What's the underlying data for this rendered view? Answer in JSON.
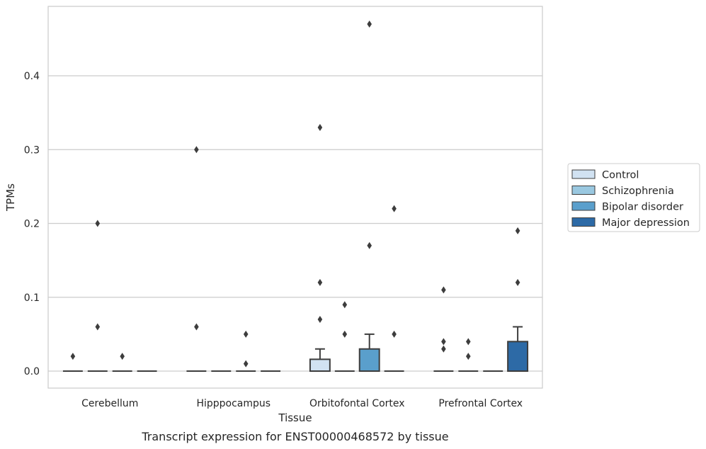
{
  "caption": "Transcript expression for ENST00000468572 by tissue",
  "chart_data": {
    "type": "box",
    "xlabel": "Tissue",
    "ylabel": "TPMs",
    "ylim": [
      -0.023,
      0.494
    ],
    "yticks": [
      0.0,
      0.1,
      0.2,
      0.3,
      0.4
    ],
    "ytick_labels": [
      "0.0",
      "0.1",
      "0.2",
      "0.3",
      "0.4"
    ],
    "grid": "horizontal",
    "legend_position": "right",
    "categories": [
      "Cerebellum",
      "Hipppocampus",
      "Orbitofontal Cortex",
      "Prefrontal Cortex"
    ],
    "series": [
      {
        "name": "Control",
        "color": "#d1e2f2",
        "boxes": [
          {
            "q1": 0,
            "median": 0,
            "q3": 0,
            "whisker_low": 0,
            "whisker_high": 0,
            "outliers": [
              0.02
            ]
          },
          {
            "q1": 0,
            "median": 0,
            "q3": 0,
            "whisker_low": 0,
            "whisker_high": 0,
            "outliers": [
              0.3,
              0.06
            ]
          },
          {
            "q1": 0,
            "median": 0,
            "q3": 0.016,
            "whisker_low": 0,
            "whisker_high": 0.03,
            "outliers": [
              0.33,
              0.12,
              0.07
            ]
          },
          {
            "q1": 0,
            "median": 0,
            "q3": 0,
            "whisker_low": 0,
            "whisker_high": 0,
            "outliers": [
              0.11,
              0.04,
              0.03
            ]
          }
        ]
      },
      {
        "name": "Schizophrenia",
        "color": "#9ac8e0",
        "boxes": [
          {
            "q1": 0,
            "median": 0,
            "q3": 0,
            "whisker_low": 0,
            "whisker_high": 0,
            "outliers": [
              0.2,
              0.06
            ]
          },
          {
            "q1": 0,
            "median": 0,
            "q3": 0,
            "whisker_low": 0,
            "whisker_high": 0,
            "outliers": []
          },
          {
            "q1": 0,
            "median": 0,
            "q3": 0,
            "whisker_low": 0,
            "whisker_high": 0,
            "outliers": [
              0.09,
              0.05
            ]
          },
          {
            "q1": 0,
            "median": 0,
            "q3": 0,
            "whisker_low": 0,
            "whisker_high": 0,
            "outliers": [
              0.04,
              0.02
            ]
          }
        ]
      },
      {
        "name": "Bipolar disorder",
        "color": "#5a9fcc",
        "boxes": [
          {
            "q1": 0,
            "median": 0,
            "q3": 0,
            "whisker_low": 0,
            "whisker_high": 0,
            "outliers": [
              0.02
            ]
          },
          {
            "q1": 0,
            "median": 0,
            "q3": 0,
            "whisker_low": 0,
            "whisker_high": 0,
            "outliers": [
              0.05,
              0.01
            ]
          },
          {
            "q1": 0,
            "median": 0,
            "q3": 0.03,
            "whisker_low": 0,
            "whisker_high": 0.05,
            "outliers": [
              0.47,
              0.17
            ]
          },
          {
            "q1": 0,
            "median": 0,
            "q3": 0,
            "whisker_low": 0,
            "whisker_high": 0,
            "outliers": []
          }
        ]
      },
      {
        "name": "Major depression",
        "color": "#2d6aa6",
        "boxes": [
          {
            "q1": 0,
            "median": 0,
            "q3": 0,
            "whisker_low": 0,
            "whisker_high": 0,
            "outliers": []
          },
          {
            "q1": 0,
            "median": 0,
            "q3": 0,
            "whisker_low": 0,
            "whisker_high": 0,
            "outliers": []
          },
          {
            "q1": 0,
            "median": 0,
            "q3": 0,
            "whisker_low": 0,
            "whisker_high": 0,
            "outliers": [
              0.22,
              0.05
            ]
          },
          {
            "q1": 0,
            "median": 0,
            "q3": 0.04,
            "whisker_low": 0,
            "whisker_high": 0.06,
            "outliers": [
              0.19,
              0.12
            ]
          }
        ]
      }
    ]
  }
}
